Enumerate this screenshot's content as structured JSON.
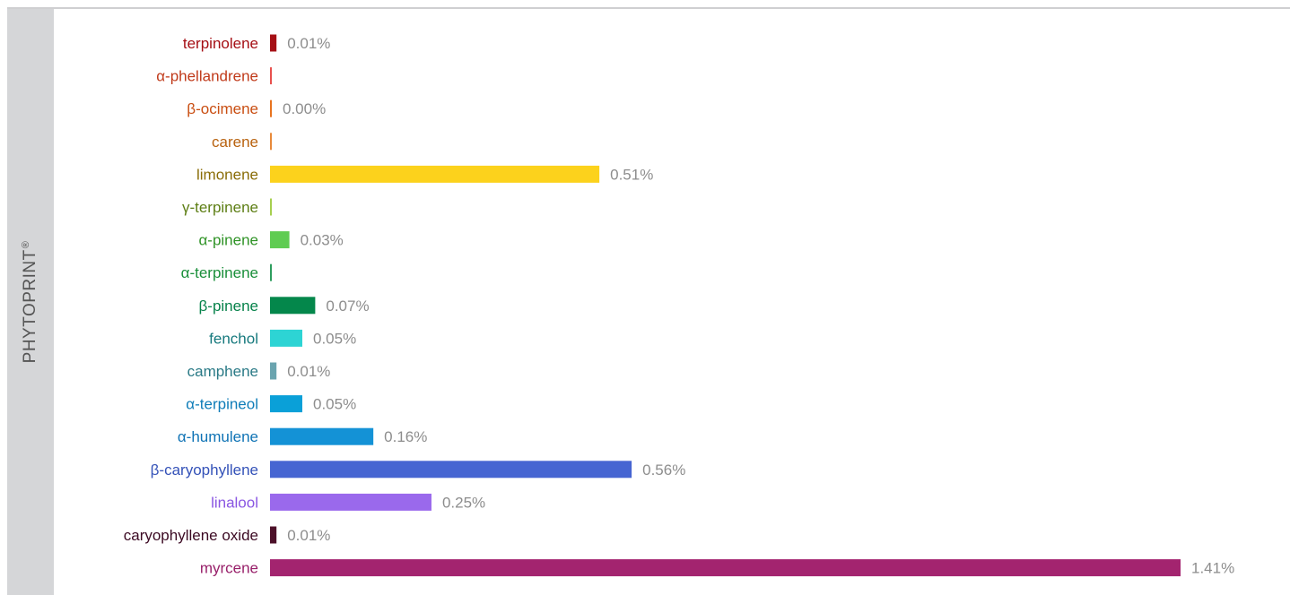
{
  "sidebar": {
    "label": "PHYTOPRINT",
    "mark": "®"
  },
  "chart_data": {
    "type": "bar",
    "orientation": "horizontal",
    "categories": [
      "terpinolene",
      "α-phellandrene",
      "β-ocimene",
      "carene",
      "limonene",
      "γ-terpinene",
      "α-pinene",
      "α-terpinene",
      "β-pinene",
      "fenchol",
      "camphene",
      "α-terpineol",
      "α-humulene",
      "β-caryophyllene",
      "linalool",
      "caryophyllene oxide",
      "myrcene"
    ],
    "values": [
      0.01,
      0.0,
      0.0,
      0.0,
      0.51,
      0.0,
      0.03,
      0.0,
      0.07,
      0.05,
      0.01,
      0.05,
      0.16,
      0.56,
      0.25,
      0.01,
      1.41
    ],
    "value_labels": [
      "0.01%",
      "",
      "0.00%",
      "",
      "0.51%",
      "",
      "0.03%",
      "",
      "0.07%",
      "0.05%",
      "0.01%",
      "0.05%",
      "0.16%",
      "0.56%",
      "0.25%",
      "0.01%",
      "1.41%"
    ],
    "bar_colors": [
      "#a50f15",
      "#e8514e",
      "#e8731f",
      "#e88a3a",
      "#fcd21c",
      "#a6cf4f",
      "#5fcc52",
      "#2e9e5f",
      "#04874b",
      "#2dd4d4",
      "#6aa4af",
      "#0aa0d8",
      "#1492d6",
      "#4665d2",
      "#9a69ec",
      "#4c1029",
      "#a3246f"
    ],
    "label_colors": [
      "#a50f15",
      "#c03a1a",
      "#c94e12",
      "#b8620f",
      "#8a6d08",
      "#5d7e14",
      "#2f9326",
      "#1a8f3a",
      "#06824a",
      "#16797d",
      "#2a7a86",
      "#0e7cb8",
      "#0f73b5",
      "#3452b8",
      "#8a56e2",
      "#3c0a23",
      "#98206a"
    ],
    "xlim": [
      0,
      1.41
    ],
    "value_label_color": "#8d8d8d"
  }
}
